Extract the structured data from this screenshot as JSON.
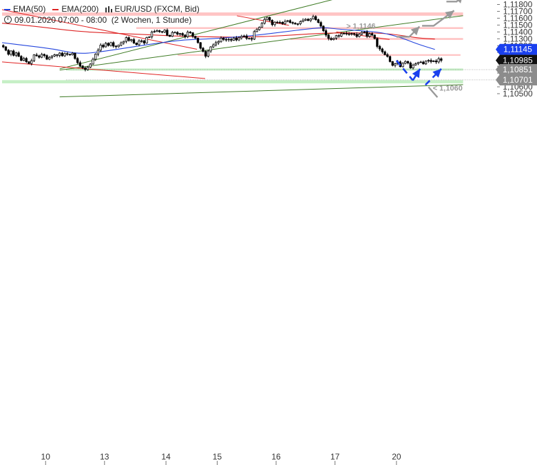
{
  "legend": {
    "ema50_label": "EMA(50)",
    "ema200_label": "EMA(200)",
    "symbol_label": "EUR/USD (FXCM, Bid)",
    "time_label": "09.01.2020 07:00 - 08:00",
    "period_label": "(2 Wochen, 1 Stunde)"
  },
  "colors": {
    "ema50": "#2244dd",
    "ema200": "#dd2222",
    "candle": "#000000",
    "trendline_green": "#3c7a22",
    "trendline_red": "#e02020",
    "resistance_zone": "#ffc4c4",
    "support_zone": "#c6efc6",
    "price_tag_dark": "#111111",
    "price_tag_blue": "#1a40ee",
    "projection_blue": "#1a40ee",
    "projection_gray": "#999999"
  },
  "chart_data": {
    "type": "candlestick",
    "symbol": "EUR/USD",
    "ylim": [
      1.1045,
      1.1188
    ],
    "y_ticks": [
      "1,11800",
      "1,11700",
      "1,11600",
      "1,11500",
      "1,11400",
      "1,11300",
      "1,11200",
      "1,11100",
      "1,11000",
      "1,10900",
      "1,10800",
      "1,10700",
      "1,10600",
      "1,10500"
    ],
    "y_tick_values": [
      1.118,
      1.117,
      1.116,
      1.115,
      1.114,
      1.113,
      1.112,
      1.111,
      1.11,
      1.109,
      1.108,
      1.107,
      1.106,
      1.105
    ],
    "x_ticks": [
      "10",
      "13",
      "14",
      "15",
      "16",
      "17",
      "20"
    ],
    "x_tick_index": [
      17,
      40,
      64,
      84,
      107,
      130,
      154
    ],
    "candle_count": 172,
    "candles_close": [
      1.11182,
      1.11133,
      1.11074,
      1.11123,
      1.11059,
      1.11095,
      1.11044,
      1.10985,
      1.11014,
      1.10965,
      1.1094,
      1.1098,
      1.11065,
      1.11052,
      1.11031,
      1.11073,
      1.11056,
      1.11003,
      1.11029,
      1.11049,
      1.11067,
      1.11058,
      1.11092,
      1.11052,
      1.11084,
      1.11073,
      1.11066,
      1.11089,
      1.11012,
      1.10952,
      1.10902,
      1.10876,
      1.10851,
      1.10886,
      1.10932,
      1.11002,
      1.11075,
      1.11134,
      1.11207,
      1.11182,
      1.11234,
      1.11203,
      1.11244,
      1.11193,
      1.11185,
      1.11207,
      1.11241,
      1.11262,
      1.11317,
      1.11275,
      1.11288,
      1.11238,
      1.11215,
      1.11269,
      1.1127,
      1.11238,
      1.11319,
      1.11327,
      1.11399,
      1.11406,
      1.11418,
      1.11404,
      1.11397,
      1.11426,
      1.1135,
      1.11335,
      1.11392,
      1.11393,
      1.11367,
      1.11377,
      1.11354,
      1.11331,
      1.11398,
      1.11388,
      1.11336,
      1.11308,
      1.11244,
      1.11163,
      1.11116,
      1.11046,
      1.11122,
      1.11182,
      1.11211,
      1.11242,
      1.1126,
      1.11309,
      1.1129,
      1.11286,
      1.11293,
      1.11279,
      1.11311,
      1.11283,
      1.11313,
      1.11334,
      1.11341,
      1.11306,
      1.11305,
      1.11294,
      1.11405,
      1.11435,
      1.11468,
      1.11527,
      1.11582,
      1.11611,
      1.1157,
      1.11506,
      1.11542,
      1.11535,
      1.1154,
      1.1152,
      1.11553,
      1.11565,
      1.11537,
      1.11527,
      1.11515,
      1.11518,
      1.1155,
      1.11571,
      1.11584,
      1.11566,
      1.11589,
      1.11624,
      1.11578,
      1.11538,
      1.11484,
      1.11418,
      1.11354,
      1.11305,
      1.11289,
      1.11308,
      1.11346,
      1.11339,
      1.11375,
      1.11379,
      1.11371,
      1.11367,
      1.11376,
      1.11365,
      1.11334,
      1.11368,
      1.11394,
      1.11401,
      1.11335,
      1.11374,
      1.11354,
      1.11303,
      1.11188,
      1.11152,
      1.11111,
      1.11068,
      1.11042,
      1.10968,
      1.10913,
      1.10936,
      1.10964,
      1.10893,
      1.10942,
      1.10969,
      1.10948,
      1.10875,
      1.10918,
      1.10936,
      1.10956,
      1.10961,
      1.10934,
      1.10975,
      1.10985,
      1.10968,
      1.10977,
      1.10963,
      1.11009,
      1.10985
    ],
    "ema50_series": [
      [
        0,
        1.11244
      ],
      [
        10,
        1.11198
      ],
      [
        20,
        1.11153
      ],
      [
        30,
        1.11075
      ],
      [
        40,
        1.11117
      ],
      [
        50,
        1.11176
      ],
      [
        60,
        1.11233
      ],
      [
        70,
        1.11282
      ],
      [
        80,
        1.11297
      ],
      [
        90,
        1.11321
      ],
      [
        100,
        1.11354
      ],
      [
        110,
        1.11401
      ],
      [
        120,
        1.11446
      ],
      [
        126,
        1.11465
      ],
      [
        130,
        1.11445
      ],
      [
        140,
        1.11417
      ],
      [
        148,
        1.11395
      ],
      [
        156,
        1.11315
      ],
      [
        162,
        1.11225
      ],
      [
        169,
        1.11145
      ]
    ],
    "ema200_series": [
      [
        0,
        1.11527
      ],
      [
        10,
        1.11494
      ],
      [
        20,
        1.11449
      ],
      [
        30,
        1.11407
      ],
      [
        40,
        1.11387
      ],
      [
        50,
        1.11371
      ],
      [
        60,
        1.11354
      ],
      [
        70,
        1.11336
      ],
      [
        80,
        1.11329
      ],
      [
        90,
        1.11323
      ],
      [
        100,
        1.11328
      ],
      [
        110,
        1.11346
      ],
      [
        120,
        1.11371
      ],
      [
        130,
        1.11387
      ],
      [
        140,
        1.11386
      ],
      [
        148,
        1.11383
      ],
      [
        156,
        1.11351
      ],
      [
        162,
        1.11311
      ],
      [
        169,
        1.11296
      ]
    ],
    "trendlines": [
      {
        "color": "green",
        "points": [
          [
            22.5,
            1.10862
          ],
          [
            129.7,
            1.11877
          ]
        ]
      },
      {
        "color": "green",
        "points": [
          [
            22.5,
            1.10844
          ],
          [
            180,
            1.11637
          ]
        ]
      },
      {
        "color": "green",
        "points": [
          [
            22.5,
            1.10453
          ],
          [
            180,
            1.10631
          ]
        ]
      },
      {
        "color": "red",
        "points": [
          [
            0,
            1.11725
          ],
          [
            76.1,
            1.11147
          ]
        ]
      },
      {
        "color": "red",
        "points": [
          [
            0,
            1.10963
          ],
          [
            79.3,
            1.10721
          ]
        ]
      },
      {
        "color": "red",
        "points": [
          [
            91.7,
            1.11635
          ],
          [
            112,
            1.11496
          ]
        ]
      },
      {
        "color": "red",
        "points": [
          [
            130.5,
            1.11401
          ],
          [
            151.3,
            1.11289
          ]
        ]
      }
    ],
    "zones": [
      {
        "kind": "resistance",
        "from": 1.11636,
        "to": 1.11684,
        "x0": 0,
        "x1": 180
      },
      {
        "kind": "resistance",
        "from": 1.11443,
        "to": 1.11469,
        "x0": 52.4,
        "x1": 180
      },
      {
        "kind": "resistance",
        "from": 1.11284,
        "to": 1.11311,
        "x0": 112.6,
        "x1": 180
      },
      {
        "kind": "resistance",
        "from": 1.11052,
        "to": 1.11075,
        "x0": 68.6,
        "x1": 179
      },
      {
        "kind": "support",
        "from": 1.10837,
        "to": 1.10867,
        "x0": 25,
        "x1": 180
      },
      {
        "kind": "support",
        "from": 1.10651,
        "to": 1.10697,
        "x0": 0,
        "x1": 180
      }
    ],
    "price_tags": [
      {
        "label": "1,11145",
        "value": 1.11145,
        "style": "blue"
      },
      {
        "label": "1,10985",
        "value": 1.10985,
        "style": "dark"
      },
      {
        "label": "1,10851",
        "value": 1.10851,
        "style": "gray"
      },
      {
        "label": "1,10701",
        "value": 1.10701,
        "style": "gray"
      }
    ],
    "annotations": [
      {
        "text": "> 1,1146",
        "x": 134.4,
        "y": 1.11491
      },
      {
        "text": "< 1,1060",
        "x": 168.2,
        "y": 1.10585
      }
    ],
    "projections": {
      "blue_dashed": [
        [
          [
            154,
            1.10983
          ],
          [
            160.4,
            1.10694
          ]
        ],
        [
          [
            160.4,
            1.10694
          ],
          [
            163.2,
            1.10862
          ]
        ],
        [
          [
            165.3,
            1.10627
          ],
          [
            171.5,
            1.10862
          ]
        ]
      ],
      "gray_arrows": [
        [
          [
            154,
            1.11329
          ],
          [
            159,
            1.11329
          ],
          [
            163,
            1.11479
          ]
        ],
        [
          [
            164,
            1.11489
          ],
          [
            168.5,
            1.11489
          ],
          [
            176.5,
            1.11711
          ]
        ],
        [
          [
            173.5,
            1.11842
          ],
          [
            177.5,
            1.11842
          ],
          [
            180,
            1.11947
          ]
        ],
        [
          [
            166.5,
            1.10597
          ],
          [
            170,
            1.10447
          ]
        ]
      ]
    }
  }
}
